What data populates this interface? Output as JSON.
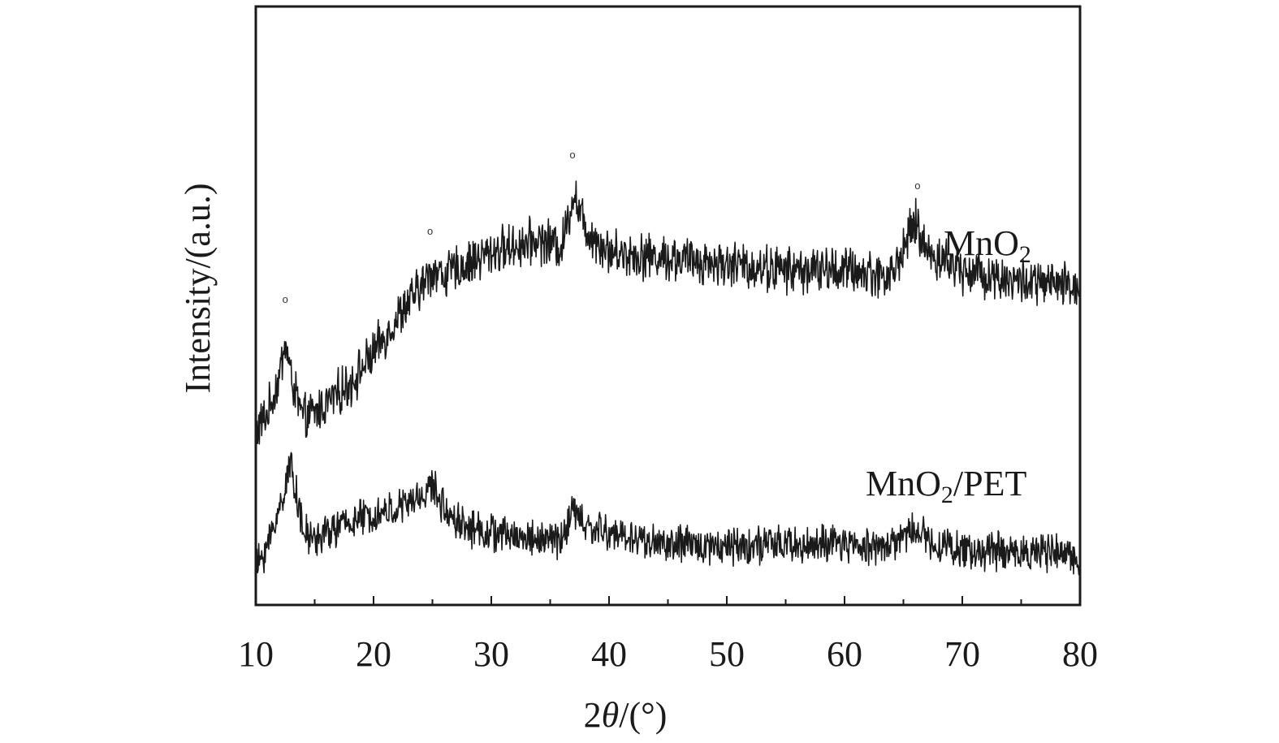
{
  "chart_data": {
    "type": "line",
    "xlabel_prefix": "2",
    "xlabel_symbol": "θ",
    "xlabel_suffix": "/(°)",
    "ylabel": "Intensity/(a.u.)",
    "xlim": [
      10,
      80
    ],
    "ylim": [
      0,
      100
    ],
    "y_ticks_shown": false,
    "grid": false,
    "x_ticks": [
      "10",
      "20",
      "30",
      "40",
      "50",
      "60",
      "70",
      "80"
    ],
    "peak_marker": "o",
    "series": [
      {
        "name_main": "MnO",
        "name_sub": "2",
        "name_tail": "",
        "noise_amplitude": 3.2,
        "baseline": [
          [
            10,
            29
          ],
          [
            11,
            32
          ],
          [
            12,
            38
          ],
          [
            12.5,
            44
          ],
          [
            13,
            38
          ],
          [
            14,
            31
          ],
          [
            15,
            32
          ],
          [
            18,
            37
          ],
          [
            20,
            42
          ],
          [
            22,
            48
          ],
          [
            24,
            53
          ],
          [
            25,
            56
          ],
          [
            26,
            55
          ],
          [
            28,
            57
          ],
          [
            30,
            59
          ],
          [
            32,
            60
          ],
          [
            34,
            61
          ],
          [
            36,
            60
          ],
          [
            37,
            69
          ],
          [
            38,
            63
          ],
          [
            40,
            59
          ],
          [
            45,
            58
          ],
          [
            50,
            57
          ],
          [
            55,
            56
          ],
          [
            60,
            56
          ],
          [
            64,
            55
          ],
          [
            66,
            64
          ],
          [
            67,
            59
          ],
          [
            70,
            56
          ],
          [
            75,
            54
          ],
          [
            80,
            53
          ]
        ],
        "peaks": [
          12.5,
          24.8,
          36.9,
          66.2
        ]
      },
      {
        "name_main": "MnO",
        "name_sub": "2",
        "name_tail": "/PET",
        "noise_amplitude": 2.6,
        "baseline": [
          [
            10,
            6
          ],
          [
            11,
            10
          ],
          [
            12,
            16
          ],
          [
            13,
            24
          ],
          [
            14,
            12
          ],
          [
            15,
            11
          ],
          [
            18,
            14
          ],
          [
            20,
            15
          ],
          [
            22,
            16
          ],
          [
            24,
            18
          ],
          [
            25,
            20
          ],
          [
            26,
            16
          ],
          [
            28,
            13
          ],
          [
            30,
            12
          ],
          [
            34,
            11
          ],
          [
            36,
            11
          ],
          [
            37,
            16
          ],
          [
            38,
            13
          ],
          [
            40,
            12
          ],
          [
            45,
            10
          ],
          [
            50,
            10
          ],
          [
            55,
            10
          ],
          [
            60,
            10
          ],
          [
            64,
            10
          ],
          [
            66,
            13
          ],
          [
            67,
            11
          ],
          [
            70,
            9
          ],
          [
            75,
            9
          ],
          [
            80,
            8
          ]
        ]
      }
    ]
  }
}
